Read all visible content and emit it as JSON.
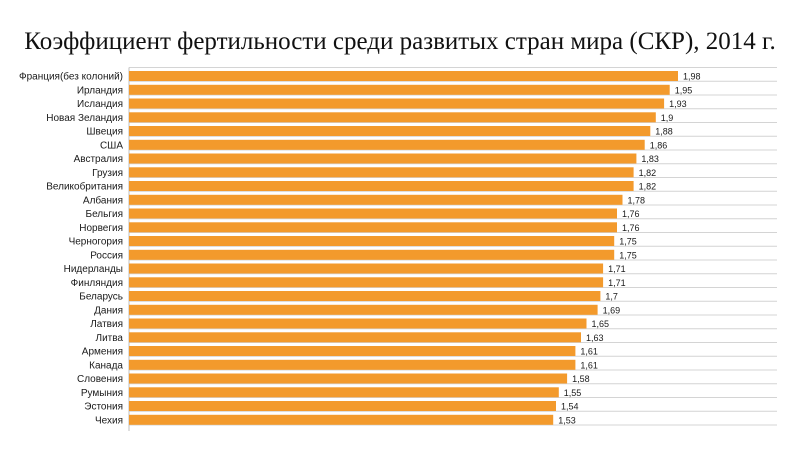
{
  "chart_data": {
    "type": "bar",
    "orientation": "horizontal",
    "title": "Коэффициент фертильности среди развитых стран мира (СКР), 2014 г.",
    "xlabel": "",
    "ylabel": "",
    "bar_color": "#F39A2C",
    "grid": true,
    "xlim": [
      0,
      2.2
    ],
    "categories": [
      "Франция(без колоний)",
      "Ирландия",
      "Исландия",
      "Новая Зеландия",
      "Швеция",
      "США",
      "Австралия",
      "Грузия",
      "Великобритания",
      "Албания",
      "Бельгия",
      "Норвегия",
      "Черногория",
      "Россия",
      "Нидерланды",
      "Финляндия",
      "Беларусь",
      "Дания",
      "Латвия",
      "Литва",
      "Армения",
      "Канада",
      "Словения",
      "Румыния",
      "Эстония",
      "Чехия"
    ],
    "values": [
      1.98,
      1.95,
      1.93,
      1.9,
      1.88,
      1.86,
      1.83,
      1.82,
      1.82,
      1.78,
      1.76,
      1.76,
      1.75,
      1.75,
      1.71,
      1.71,
      1.7,
      1.69,
      1.65,
      1.63,
      1.61,
      1.61,
      1.58,
      1.55,
      1.54,
      1.53
    ],
    "value_labels": [
      "1,98",
      "1,95",
      "1,93",
      "1,9",
      "1,88",
      "1,86",
      "1,83",
      "1,82",
      "1,82",
      "1,78",
      "1,76",
      "1,76",
      "1,75",
      "1,75",
      "1,71",
      "1,71",
      "1,7",
      "1,69",
      "1,65",
      "1,63",
      "1,61",
      "1,61",
      "1,58",
      "1,55",
      "1,54",
      "1,53"
    ]
  }
}
